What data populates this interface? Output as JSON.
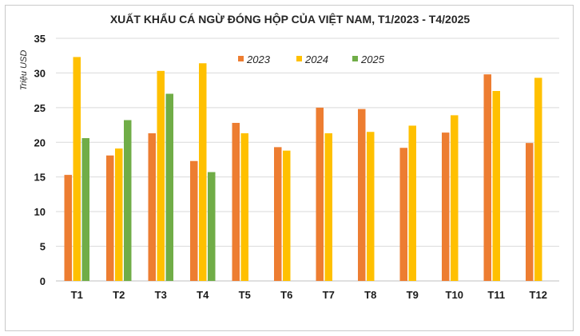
{
  "chart_data": {
    "type": "bar",
    "title": "XUẤT KHẨU CÁ NGỪ ĐÓNG HỘP CỦA VIỆT NAM, T1/2023  - T4/2025",
    "xlabel": "",
    "ylabel": "Triệu USD",
    "ylim": [
      0,
      35
    ],
    "yticks": [
      0,
      5,
      10,
      15,
      20,
      25,
      30,
      35
    ],
    "grid": true,
    "legend_position": "top-center",
    "categories": [
      "T1",
      "T2",
      "T3",
      "T4",
      "T5",
      "T6",
      "T7",
      "T8",
      "T9",
      "T10",
      "T11",
      "T12"
    ],
    "series": [
      {
        "name": "2023",
        "color": "#ed7d31",
        "values": [
          15.3,
          18.1,
          21.3,
          17.3,
          22.8,
          19.3,
          25.0,
          24.8,
          19.2,
          21.4,
          29.8,
          19.9
        ]
      },
      {
        "name": "2024",
        "color": "#ffc000",
        "values": [
          32.3,
          19.1,
          30.3,
          31.4,
          21.3,
          18.8,
          21.3,
          21.5,
          22.4,
          23.9,
          27.4,
          29.3
        ]
      },
      {
        "name": "2025",
        "color": "#70ad47",
        "values": [
          20.6,
          23.2,
          27.0,
          15.7,
          null,
          null,
          null,
          null,
          null,
          null,
          null,
          null
        ]
      }
    ]
  }
}
